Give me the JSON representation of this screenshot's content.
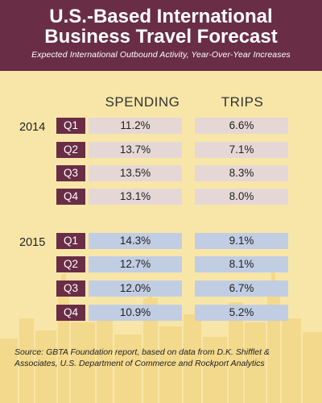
{
  "header": {
    "title_line1": "U.S.-Based International",
    "title_line2": "Business Travel Forecast",
    "subtitle": "Expected International Outbound Activity, Year-Over-Year Increases"
  },
  "columns": {
    "spending": "SPENDING",
    "trips": "TRIPS"
  },
  "source": "Source: GBTA Foundation report, based on data from D.K. Shifflet & Associates, U.S. Department of Commerce and Rockport Analytics",
  "colors": {
    "header_bg": "#6a2d46",
    "page_bg": "#f8e6a8",
    "row_2014": "#e6d7d7",
    "row_2015": "#c1cde3",
    "skyline": "#f3d98c"
  },
  "chart_data": {
    "type": "table",
    "title": "U.S.-Based International Business Travel Forecast",
    "subtitle": "Expected International Outbound Activity, Year-Over-Year Increases",
    "columns": [
      "SPENDING",
      "TRIPS"
    ],
    "groups": [
      {
        "year": "2014",
        "rows": [
          {
            "quarter": "Q1",
            "spending": "11.2%",
            "trips": "6.6%"
          },
          {
            "quarter": "Q2",
            "spending": "13.7%",
            "trips": "7.1%"
          },
          {
            "quarter": "Q3",
            "spending": "13.5%",
            "trips": "8.3%"
          },
          {
            "quarter": "Q4",
            "spending": "13.1%",
            "trips": "8.0%"
          }
        ]
      },
      {
        "year": "2015",
        "rows": [
          {
            "quarter": "Q1",
            "spending": "14.3%",
            "trips": "9.1%"
          },
          {
            "quarter": "Q2",
            "spending": "12.7%",
            "trips": "8.1%"
          },
          {
            "quarter": "Q3",
            "spending": "12.0%",
            "trips": "6.7%"
          },
          {
            "quarter": "Q4",
            "spending": "10.9%",
            "trips": "5.2%"
          }
        ]
      }
    ]
  }
}
